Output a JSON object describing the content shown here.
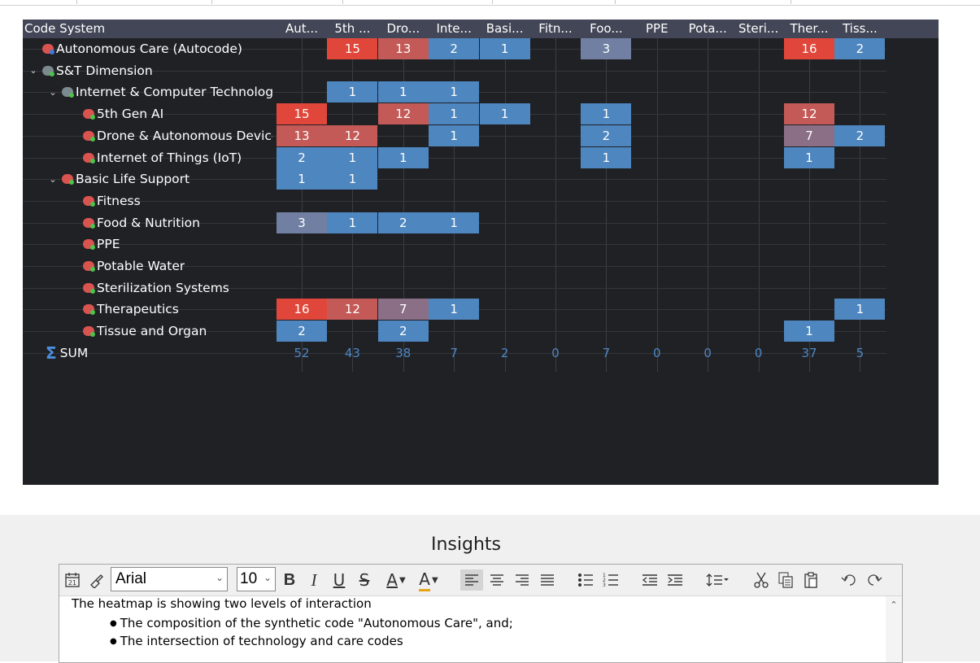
{
  "colors": {
    "high": "#e0473a",
    "mid_high": "#c45a57",
    "mid": "#8a6f86",
    "low_mid": "#7180a2",
    "low": "#4e86bf",
    "sum": "#4d87c4",
    "panel_bg": "#202125",
    "header_bg": "#424656"
  },
  "matrix": {
    "first_header": "Code System",
    "columns": [
      "Aut...",
      "5th ...",
      "Dro...",
      "Inte...",
      "Basi...",
      "Fitn...",
      "Foo...",
      "PPE",
      "Pota...",
      "Steri...",
      "Ther...",
      "Tiss..."
    ],
    "rows": [
      {
        "label": "Autonomous Care (Autocode)",
        "level": 0,
        "chevron": "",
        "icon_color": "#d9534f",
        "dot_color": "#3c7bd9",
        "cells": [
          "",
          15,
          13,
          2,
          1,
          "",
          3,
          "",
          "",
          "",
          16,
          2
        ]
      },
      {
        "label": "S&T Dimension",
        "level": 0,
        "chevron": "⌄",
        "icon_color": "#7a8a8e",
        "dot_color": "#4cc34c",
        "cells": [
          "",
          "",
          "",
          "",
          "",
          "",
          "",
          "",
          "",
          "",
          "",
          ""
        ]
      },
      {
        "label": "Internet & Computer Technologi",
        "level": 1,
        "chevron": "⌄",
        "icon_color": "#7a8a8e",
        "dot_color": "#4cc34c",
        "cells": [
          "",
          1,
          1,
          1,
          "",
          "",
          "",
          "",
          "",
          "",
          "",
          ""
        ]
      },
      {
        "label": "5th Gen AI",
        "level": 2,
        "chevron": "",
        "icon_color": "#d9534f",
        "dot_color": "#4cc34c",
        "cells": [
          15,
          "",
          12,
          1,
          1,
          "",
          1,
          "",
          "",
          "",
          12,
          ""
        ]
      },
      {
        "label": "Drone & Autonomous Device",
        "level": 2,
        "chevron": "",
        "icon_color": "#d9534f",
        "dot_color": "#4cc34c",
        "cells": [
          13,
          12,
          "",
          1,
          "",
          "",
          2,
          "",
          "",
          "",
          7,
          2
        ]
      },
      {
        "label": "Internet of Things (IoT)",
        "level": 2,
        "chevron": "",
        "icon_color": "#d9534f",
        "dot_color": "#4cc34c",
        "cells": [
          2,
          1,
          1,
          "",
          "",
          "",
          1,
          "",
          "",
          "",
          1,
          ""
        ]
      },
      {
        "label": "Basic Life Support",
        "level": 1,
        "chevron": "⌄",
        "icon_color": "#d9534f",
        "dot_color": "#4cc34c",
        "cells": [
          1,
          1,
          "",
          "",
          "",
          "",
          "",
          "",
          "",
          "",
          "",
          ""
        ]
      },
      {
        "label": "Fitness",
        "level": 2,
        "chevron": "",
        "icon_color": "#d9534f",
        "dot_color": "#4cc34c",
        "cells": [
          "",
          "",
          "",
          "",
          "",
          "",
          "",
          "",
          "",
          "",
          "",
          ""
        ]
      },
      {
        "label": "Food & Nutrition",
        "level": 2,
        "chevron": "",
        "icon_color": "#d9534f",
        "dot_color": "#4cc34c",
        "cells": [
          3,
          1,
          2,
          1,
          "",
          "",
          "",
          "",
          "",
          "",
          "",
          ""
        ]
      },
      {
        "label": "PPE",
        "level": 2,
        "chevron": "",
        "icon_color": "#d9534f",
        "dot_color": "#4cc34c",
        "cells": [
          "",
          "",
          "",
          "",
          "",
          "",
          "",
          "",
          "",
          "",
          "",
          ""
        ]
      },
      {
        "label": "Potable Water",
        "level": 2,
        "chevron": "",
        "icon_color": "#d9534f",
        "dot_color": "#4cc34c",
        "cells": [
          "",
          "",
          "",
          "",
          "",
          "",
          "",
          "",
          "",
          "",
          "",
          ""
        ]
      },
      {
        "label": "Sterilization Systems",
        "level": 2,
        "chevron": "",
        "icon_color": "#d9534f",
        "dot_color": "#4cc34c",
        "cells": [
          "",
          "",
          "",
          "",
          "",
          "",
          "",
          "",
          "",
          "",
          "",
          ""
        ]
      },
      {
        "label": "Therapeutics",
        "level": 2,
        "chevron": "",
        "icon_color": "#d9534f",
        "dot_color": "#4cc34c",
        "cells": [
          16,
          12,
          7,
          1,
          "",
          "",
          "",
          "",
          "",
          "",
          "",
          1
        ]
      },
      {
        "label": "Tissue and Organ",
        "level": 2,
        "chevron": "",
        "icon_color": "#d9534f",
        "dot_color": "#4cc34c",
        "cells": [
          2,
          "",
          2,
          "",
          "",
          "",
          "",
          "",
          "",
          "",
          1,
          ""
        ]
      }
    ],
    "sum_label": "SUM",
    "sums": [
      52,
      43,
      38,
      7,
      2,
      0,
      7,
      0,
      0,
      0,
      37,
      5
    ]
  },
  "insights": {
    "title": "Insights",
    "font": "Arial",
    "size": "10",
    "toolbar": {
      "bold": "B",
      "italic": "I",
      "underline": "U",
      "strike": "S",
      "font_color": "A",
      "highlight": "A"
    },
    "body_text": "The heatmap is showing two levels of interaction",
    "bullets": [
      "The composition of the synthetic code \"Autonomous Care\", and;",
      "The intersection of technology and care codes"
    ]
  }
}
